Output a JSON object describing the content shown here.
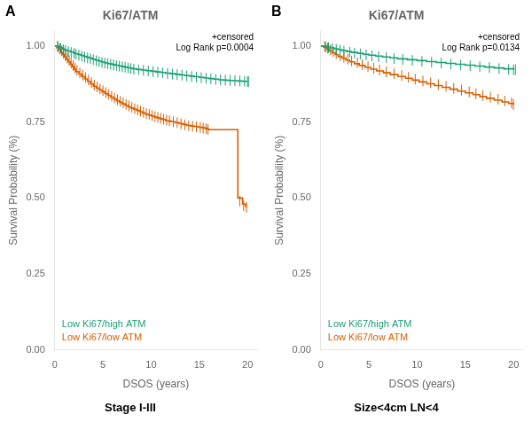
{
  "chart_data": [
    {
      "type": "line",
      "title": "Ki67/ATM",
      "label": "A",
      "subtitle": "Stage I-III",
      "annotations": [
        "+censored",
        "Log Rank p=0.0004"
      ],
      "x_label": "DSOS (years)",
      "y_label": "Survival Probability (%)",
      "xlim": [
        0,
        21
      ],
      "ylim": [
        0.0,
        1.05
      ],
      "xticks": [
        0,
        5,
        10,
        15,
        20
      ],
      "yticks": [
        {
          "value": 0.0,
          "label": "0.00"
        },
        0.25,
        {
          "value": 0.5,
          "label": "0.50"
        },
        0.75,
        {
          "value": 1.0,
          "label": "1.00"
        }
      ],
      "grid": false,
      "line_style": "steps-post",
      "series": [
        {
          "name": "Low Ki67/high ATM",
          "color": "#1a9e76",
          "x": [
            0,
            0.2,
            0.5,
            0.8,
            1.0,
            1.3,
            1.6,
            1.9,
            2.1,
            2.4,
            2.7,
            3.0,
            3.3,
            3.6,
            3.9,
            4.2,
            4.5,
            4.8,
            5.1,
            5.4,
            5.7,
            6.0,
            6.3,
            6.6,
            6.9,
            7.2,
            7.5,
            7.8,
            8.1,
            8.5,
            9.0,
            9.5,
            10.0,
            10.5,
            11.0,
            11.5,
            12.0,
            12.5,
            13.0,
            13.5,
            14.0,
            14.5,
            15.0,
            15.5,
            16.0,
            16.5,
            17.0,
            17.5,
            18.0,
            18.5,
            19.0,
            19.5,
            20.0
          ],
          "values": [
            1.0,
            1.0,
            0.995,
            0.99,
            0.987,
            0.984,
            0.981,
            0.978,
            0.975,
            0.972,
            0.969,
            0.966,
            0.963,
            0.96,
            0.957,
            0.954,
            0.951,
            0.948,
            0.945,
            0.943,
            0.941,
            0.939,
            0.937,
            0.935,
            0.933,
            0.931,
            0.929,
            0.927,
            0.925,
            0.923,
            0.921,
            0.919,
            0.917,
            0.915,
            0.913,
            0.911,
            0.909,
            0.907,
            0.905,
            0.903,
            0.901,
            0.899,
            0.897,
            0.895,
            0.893,
            0.891,
            0.889,
            0.888,
            0.887,
            0.886,
            0.885,
            0.884,
            0.883
          ],
          "censor_x": [
            0.3,
            0.6,
            0.9,
            1.1,
            1.4,
            1.7,
            2.0,
            2.2,
            2.5,
            2.8,
            3.1,
            3.4,
            3.7,
            4.0,
            4.3,
            4.6,
            4.9,
            5.2,
            5.5,
            5.8,
            6.1,
            6.4,
            6.7,
            7.0,
            7.3,
            7.6,
            7.9,
            8.2,
            8.7,
            9.2,
            9.7,
            10.2,
            10.7,
            11.2,
            11.7,
            12.2,
            12.7,
            13.2,
            13.7,
            14.2,
            14.7,
            15.2,
            15.7,
            16.2,
            16.7,
            17.2,
            17.7,
            18.2,
            18.7,
            19.2,
            19.7,
            20.0,
            20.1
          ],
          "censor_values": [
            1.0,
            0.993,
            0.988,
            0.985,
            0.982,
            0.979,
            0.976,
            0.973,
            0.97,
            0.967,
            0.964,
            0.961,
            0.958,
            0.955,
            0.952,
            0.949,
            0.946,
            0.944,
            0.942,
            0.94,
            0.938,
            0.936,
            0.934,
            0.932,
            0.93,
            0.928,
            0.926,
            0.924,
            0.922,
            0.92,
            0.918,
            0.916,
            0.914,
            0.912,
            0.91,
            0.908,
            0.906,
            0.904,
            0.902,
            0.9,
            0.898,
            0.896,
            0.894,
            0.892,
            0.89,
            0.889,
            0.888,
            0.887,
            0.886,
            0.885,
            0.884,
            0.883,
            0.883
          ]
        },
        {
          "name": "Low Ki67/low ATM",
          "color": "#d55e00",
          "x": [
            0,
            0.2,
            0.4,
            0.6,
            0.8,
            1.0,
            1.2,
            1.4,
            1.6,
            1.8,
            2.0,
            2.2,
            2.5,
            2.8,
            3.1,
            3.4,
            3.7,
            4.0,
            4.3,
            4.6,
            4.9,
            5.2,
            5.5,
            5.8,
            6.1,
            6.4,
            6.7,
            7.0,
            7.3,
            7.6,
            7.9,
            8.2,
            8.5,
            8.8,
            9.1,
            9.4,
            9.7,
            10.0,
            10.3,
            10.6,
            10.9,
            11.2,
            11.5,
            11.8,
            12.1,
            12.5,
            12.9,
            13.3,
            13.7,
            14.1,
            14.5,
            14.9,
            15.3,
            15.6,
            15.8,
            16.0,
            19.0,
            19.5,
            19.8
          ],
          "values": [
            1.0,
            0.995,
            0.988,
            0.98,
            0.972,
            0.964,
            0.956,
            0.948,
            0.94,
            0.932,
            0.924,
            0.916,
            0.908,
            0.9,
            0.892,
            0.884,
            0.876,
            0.868,
            0.862,
            0.856,
            0.85,
            0.844,
            0.838,
            0.832,
            0.826,
            0.82,
            0.815,
            0.81,
            0.805,
            0.8,
            0.796,
            0.792,
            0.788,
            0.784,
            0.78,
            0.776,
            0.773,
            0.77,
            0.767,
            0.764,
            0.761,
            0.758,
            0.755,
            0.753,
            0.751,
            0.748,
            0.745,
            0.742,
            0.739,
            0.737,
            0.735,
            0.733,
            0.731,
            0.729,
            0.727,
            0.725,
            0.5,
            0.48,
            0.47
          ],
          "censor_x": [
            0.3,
            0.5,
            0.7,
            0.9,
            1.1,
            1.3,
            1.5,
            1.7,
            1.9,
            2.1,
            2.3,
            2.6,
            2.9,
            3.2,
            3.5,
            3.8,
            4.1,
            4.4,
            4.7,
            5.0,
            5.3,
            5.6,
            5.9,
            6.2,
            6.5,
            6.8,
            7.1,
            7.4,
            7.7,
            8.0,
            8.3,
            8.6,
            8.9,
            9.2,
            9.5,
            9.8,
            10.1,
            10.4,
            10.7,
            11.0,
            11.3,
            11.6,
            11.9,
            12.3,
            12.7,
            13.1,
            13.5,
            13.9,
            14.3,
            14.7,
            15.1,
            15.4,
            15.7,
            15.9,
            19.2,
            19.6,
            19.9
          ],
          "censor_values": [
            0.997,
            0.991,
            0.984,
            0.976,
            0.968,
            0.96,
            0.952,
            0.944,
            0.936,
            0.928,
            0.92,
            0.912,
            0.904,
            0.896,
            0.888,
            0.88,
            0.872,
            0.865,
            0.859,
            0.853,
            0.847,
            0.841,
            0.835,
            0.829,
            0.823,
            0.818,
            0.813,
            0.808,
            0.803,
            0.798,
            0.794,
            0.79,
            0.786,
            0.782,
            0.778,
            0.775,
            0.771,
            0.768,
            0.765,
            0.762,
            0.759,
            0.756,
            0.754,
            0.751,
            0.748,
            0.744,
            0.741,
            0.738,
            0.736,
            0.734,
            0.732,
            0.73,
            0.728,
            0.726,
            0.49,
            0.475,
            0.47
          ]
        }
      ]
    },
    {
      "type": "line",
      "title": "Ki67/ATM",
      "label": "B",
      "subtitle": "Size<4cm LN<4",
      "annotations": [
        "+censored",
        "Log Rank p=0.0134"
      ],
      "x_label": "DSOS (years)",
      "y_label": "Survival Probability (%)",
      "xlim": [
        0,
        21
      ],
      "ylim": [
        0.0,
        1.05
      ],
      "xticks": [
        0,
        5,
        10,
        15,
        20
      ],
      "yticks": [
        {
          "value": 0.0,
          "label": "0.00"
        },
        0.25,
        {
          "value": 0.5,
          "label": "0.50"
        },
        0.75,
        {
          "value": 1.0,
          "label": "1.00"
        }
      ],
      "grid": false,
      "line_style": "steps-post",
      "series": [
        {
          "name": "Low Ki67/high ATM",
          "color": "#1a9e76",
          "x": [
            0,
            0.3,
            0.7,
            1.0,
            1.4,
            1.8,
            2.2,
            2.7,
            3.2,
            3.8,
            4.4,
            5.0,
            5.7,
            6.4,
            7.2,
            8.0,
            9.0,
            10.0,
            11.0,
            12.0,
            13.0,
            14.0,
            15.0,
            16.0,
            17.0,
            18.0,
            19.0,
            20.0
          ],
          "values": [
            1.0,
            1.0,
            0.997,
            0.994,
            0.991,
            0.988,
            0.985,
            0.982,
            0.979,
            0.976,
            0.973,
            0.97,
            0.967,
            0.964,
            0.961,
            0.958,
            0.955,
            0.952,
            0.949,
            0.946,
            0.943,
            0.94,
            0.937,
            0.934,
            0.931,
            0.928,
            0.925,
            0.922
          ],
          "censor_x": [
            0.5,
            0.8,
            1.2,
            1.6,
            2.0,
            2.4,
            3.0,
            3.5,
            4.1,
            4.7,
            5.3,
            6.0,
            6.8,
            7.6,
            8.5,
            9.5,
            10.5,
            11.5,
            12.5,
            13.5,
            14.5,
            15.5,
            16.5,
            17.5,
            18.5,
            19.5,
            20.0,
            20.2
          ],
          "censor_values": [
            0.998,
            0.995,
            0.992,
            0.989,
            0.986,
            0.983,
            0.98,
            0.977,
            0.974,
            0.971,
            0.968,
            0.965,
            0.962,
            0.959,
            0.956,
            0.953,
            0.95,
            0.947,
            0.944,
            0.941,
            0.938,
            0.935,
            0.932,
            0.929,
            0.926,
            0.923,
            0.922,
            0.922
          ]
        },
        {
          "name": "Low Ki67/low ATM",
          "color": "#d55e00",
          "x": [
            0,
            0.3,
            0.6,
            0.9,
            1.2,
            1.5,
            1.8,
            2.2,
            2.6,
            3.0,
            3.5,
            4.0,
            4.6,
            5.2,
            5.8,
            6.5,
            7.2,
            8.0,
            8.8,
            9.5,
            10.2,
            11.0,
            11.8,
            12.6,
            13.4,
            14.2,
            15.0,
            15.8,
            16.5,
            17.2,
            18.0,
            18.8,
            19.5,
            20.0
          ],
          "values": [
            1.0,
            0.996,
            0.99,
            0.984,
            0.978,
            0.972,
            0.966,
            0.96,
            0.954,
            0.948,
            0.942,
            0.936,
            0.93,
            0.924,
            0.918,
            0.912,
            0.906,
            0.9,
            0.894,
            0.888,
            0.882,
            0.876,
            0.87,
            0.864,
            0.858,
            0.852,
            0.846,
            0.84,
            0.834,
            0.828,
            0.822,
            0.816,
            0.811,
            0.807
          ],
          "censor_x": [
            0.4,
            0.7,
            1.0,
            1.3,
            1.6,
            2.0,
            2.4,
            2.8,
            3.2,
            3.8,
            4.3,
            4.9,
            5.5,
            6.1,
            6.8,
            7.6,
            8.4,
            9.1,
            9.8,
            10.6,
            11.4,
            12.2,
            13.0,
            13.8,
            14.6,
            15.4,
            16.1,
            16.8,
            17.6,
            18.4,
            19.1,
            19.8,
            20.0
          ],
          "censor_values": [
            0.998,
            0.993,
            0.987,
            0.981,
            0.975,
            0.969,
            0.963,
            0.957,
            0.951,
            0.945,
            0.939,
            0.933,
            0.927,
            0.921,
            0.915,
            0.909,
            0.903,
            0.897,
            0.891,
            0.885,
            0.879,
            0.873,
            0.867,
            0.861,
            0.855,
            0.849,
            0.843,
            0.837,
            0.831,
            0.825,
            0.819,
            0.813,
            0.808
          ]
        }
      ]
    }
  ]
}
